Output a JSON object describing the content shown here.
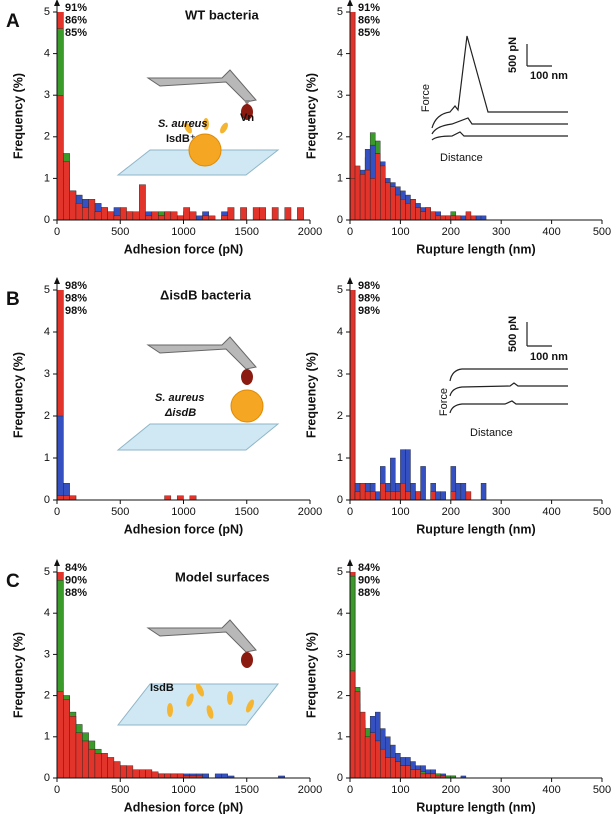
{
  "panel_labels": [
    "A",
    "B",
    "C"
  ],
  "chart_data": [
    {
      "type": "histogram",
      "title": "WT bacteria",
      "xlabel": "Adhesion force (pN)",
      "ylabel": "Frequency (%)",
      "xlim": [
        0,
        2000
      ],
      "xticks": [
        0,
        500,
        1000,
        1500,
        2000
      ],
      "ylim": [
        0,
        5
      ],
      "yticks": [
        0,
        1,
        2,
        3,
        4,
        5
      ],
      "bins": [
        0,
        50,
        100,
        150,
        200,
        250,
        300,
        350,
        400,
        450,
        500,
        550,
        600,
        650,
        700,
        750,
        800,
        850,
        900,
        950,
        1000,
        1050,
        1100,
        1150,
        1200,
        1250,
        1300,
        1350,
        1400,
        1450,
        1500,
        1550,
        1600,
        1650,
        1700,
        1750,
        1800,
        1850,
        1900,
        1950,
        2000
      ],
      "series": [
        {
          "color": "#e3342b",
          "peak": 91,
          "peak_label": "91%",
          "values": [
            3.0,
            1.4,
            0.7,
            0.4,
            0.3,
            0.5,
            0.2,
            0.3,
            0.2,
            0.1,
            0.3,
            0.2,
            0.2,
            0.85,
            0.1,
            0.2,
            0.1,
            0.2,
            0.2,
            0.1,
            0.3,
            0.2,
            0,
            0.1,
            0.1,
            0,
            0.1,
            0.3,
            0,
            0.3,
            0,
            0.3,
            0.3,
            0,
            0.3,
            0,
            0.3,
            0,
            0.3,
            0
          ]
        },
        {
          "color": "#3550c0",
          "peak": 86,
          "peak_label": "86%",
          "values": [
            1.5,
            1.0,
            0.7,
            0.6,
            0.5,
            0.4,
            0.4,
            0.3,
            0.2,
            0.3,
            0.2,
            0.2,
            0.1,
            0.1,
            0.2,
            0.1,
            0.1,
            0.2,
            0.1,
            0.1,
            0.2,
            0,
            0.1,
            0.2,
            0,
            0,
            0.2,
            0,
            0,
            0,
            0,
            0,
            0,
            0,
            0,
            0,
            0,
            0,
            0,
            0
          ]
        },
        {
          "color": "#3a9a2a",
          "peak": 85,
          "peak_label": "85%",
          "values": [
            4.6,
            1.6,
            0.6,
            0.4,
            0.3,
            0.2,
            0.2,
            0.2,
            0.1,
            0.1,
            0.1,
            0.2,
            0.1,
            0.1,
            0.1,
            0.1,
            0.2,
            0.1,
            0.1,
            0,
            0.1,
            0.1,
            0,
            0,
            0,
            0,
            0,
            0,
            0,
            0,
            0,
            0,
            0,
            0,
            0,
            0,
            0,
            0,
            0,
            0
          ]
        }
      ],
      "annotations": [
        "Vn",
        "S. aureus",
        "IsdB⁺"
      ]
    },
    {
      "type": "histogram",
      "xlabel": "Rupture length (nm)",
      "ylabel": "Frequency (%)",
      "xlim": [
        0,
        500
      ],
      "xticks": [
        0,
        100,
        200,
        300,
        400,
        500
      ],
      "ylim": [
        0,
        5
      ],
      "yticks": [
        0,
        1,
        2,
        3,
        4,
        5
      ],
      "bins": [
        0,
        10,
        20,
        30,
        40,
        50,
        60,
        70,
        80,
        90,
        100,
        110,
        120,
        130,
        140,
        150,
        160,
        170,
        180,
        190,
        200,
        210,
        220,
        230,
        240,
        250,
        260,
        270,
        280,
        290,
        300
      ],
      "series": [
        {
          "color": "#e3342b",
          "peak": 91,
          "peak_label": "91%",
          "values": [
            1.0,
            1.3,
            1.1,
            1.2,
            1.0,
            1.6,
            1.3,
            0.9,
            0.8,
            0.6,
            0.5,
            0.4,
            0.5,
            0.3,
            0.2,
            0.3,
            0.2,
            0.1,
            0.1,
            0.1,
            0.1,
            0.1,
            0,
            0.2,
            0.1,
            0,
            0,
            0,
            0,
            0
          ]
        },
        {
          "color": "#3550c0",
          "peak": 86,
          "peak_label": "86%",
          "values": [
            0.5,
            0.8,
            1.2,
            1.7,
            1.8,
            1.6,
            1.4,
            1.0,
            0.9,
            0.8,
            0.7,
            0.6,
            0.5,
            0.4,
            0.3,
            0.3,
            0.2,
            0.2,
            0.1,
            0.1,
            0.1,
            0.1,
            0.1,
            0.1,
            0,
            0.1,
            0.1,
            0,
            0,
            0
          ]
        },
        {
          "color": "#3a9a2a",
          "peak": 85,
          "peak_label": "85%",
          "values": [
            0.3,
            0.5,
            1.0,
            1.5,
            2.1,
            1.9,
            1.2,
            0.9,
            0.8,
            0.7,
            0.6,
            0.4,
            0.4,
            0.3,
            0.2,
            0.2,
            0.1,
            0.1,
            0.1,
            0.1,
            0.2,
            0,
            0,
            0,
            0,
            0,
            0,
            0,
            0,
            0
          ]
        }
      ],
      "annotations": [
        "500 pN",
        "100 nm",
        "Force",
        "Distance"
      ]
    },
    {
      "type": "histogram",
      "title": "ΔisdB bacteria",
      "xlabel": "Adhesion force (pN)",
      "ylabel": "Frequency (%)",
      "xlim": [
        0,
        2000
      ],
      "xticks": [
        0,
        500,
        1000,
        1500,
        2000
      ],
      "ylim": [
        0,
        5
      ],
      "yticks": [
        0,
        1,
        2,
        3,
        4,
        5
      ],
      "bins": [
        0,
        50,
        100,
        150,
        200,
        250,
        300,
        350,
        400,
        450,
        500,
        550,
        600,
        650,
        700,
        750,
        800,
        850,
        900,
        950,
        1000,
        1050,
        1100,
        1150,
        1200
      ],
      "series": [
        {
          "color": "#e3342b",
          "peak": 98,
          "peak_label": "98%",
          "values": [
            0.1,
            0.1,
            0.1,
            0,
            0,
            0,
            0,
            0,
            0,
            0,
            0,
            0,
            0,
            0,
            0,
            0,
            0,
            0.1,
            0,
            0.1,
            0,
            0.1,
            0,
            0
          ]
        },
        {
          "color": "#3550c0",
          "peak": 98,
          "peak_label": "98%",
          "values": [
            2.0,
            0.4,
            0.1,
            0,
            0,
            0,
            0,
            0,
            0,
            0,
            0,
            0,
            0,
            0,
            0,
            0,
            0,
            0,
            0,
            0,
            0,
            0,
            0,
            0
          ]
        },
        {
          "color": "#3a9a2a",
          "peak": 98,
          "peak_label": "98%",
          "values": [
            0,
            0,
            0,
            0,
            0,
            0,
            0,
            0,
            0,
            0,
            0,
            0,
            0,
            0,
            0,
            0,
            0,
            0,
            0,
            0,
            0,
            0,
            0,
            0
          ]
        }
      ],
      "annotations": [
        "S. aureus",
        "ΔisdB"
      ]
    },
    {
      "type": "histogram",
      "xlabel": "Rupture length (nm)",
      "ylabel": "Frequency (%)",
      "xlim": [
        0,
        500
      ],
      "xticks": [
        0,
        100,
        200,
        300,
        400,
        500
      ],
      "ylim": [
        0,
        5
      ],
      "yticks": [
        0,
        1,
        2,
        3,
        4,
        5
      ],
      "bins": [
        0,
        10,
        20,
        30,
        40,
        50,
        60,
        70,
        80,
        90,
        100,
        110,
        120,
        130,
        140,
        150,
        160,
        170,
        180,
        190,
        200,
        210,
        220,
        230,
        240,
        250,
        260,
        270,
        280,
        290,
        300
      ],
      "series": [
        {
          "color": "#e3342b",
          "peak": 98,
          "peak_label": "98%",
          "values": [
            0,
            0.2,
            0.4,
            0.2,
            0.2,
            0,
            0.4,
            0.2,
            0.2,
            0.2,
            0.4,
            0.2,
            0,
            0.2,
            0,
            0,
            0.2,
            0,
            0,
            0,
            0.2,
            0,
            0,
            0.2,
            0,
            0,
            0,
            0,
            0,
            0
          ]
        },
        {
          "color": "#3550c0",
          "peak": 98,
          "peak_label": "98%",
          "values": [
            0,
            0.4,
            0.2,
            0.4,
            0.4,
            0.2,
            0.8,
            0.4,
            1.0,
            0.4,
            1.2,
            1.2,
            0.4,
            0.2,
            0.8,
            0,
            0.4,
            0.2,
            0.2,
            0,
            0.8,
            0.4,
            0.4,
            0,
            0,
            0,
            0.4,
            0,
            0,
            0
          ]
        },
        {
          "color": "#3a9a2a",
          "peak": 98,
          "peak_label": "98%",
          "values": [
            0,
            0.2,
            0.2,
            0,
            0,
            0,
            0,
            0,
            0,
            0,
            0,
            0,
            0,
            0,
            0,
            0,
            0,
            0,
            0,
            0,
            0,
            0,
            0,
            0,
            0,
            0,
            0,
            0,
            0,
            0
          ]
        }
      ],
      "annotations": [
        "500 pN",
        "100 nm",
        "Force",
        "Distance"
      ]
    },
    {
      "type": "histogram",
      "title": "Model surfaces",
      "xlabel": "Adhesion force (pN)",
      "ylabel": "Frequency (%)",
      "xlim": [
        0,
        2000
      ],
      "xticks": [
        0,
        500,
        1000,
        1500,
        2000
      ],
      "ylim": [
        0,
        5
      ],
      "yticks": [
        0,
        1,
        2,
        3,
        4,
        5
      ],
      "bins": [
        0,
        50,
        100,
        150,
        200,
        250,
        300,
        350,
        400,
        450,
        500,
        550,
        600,
        650,
        700,
        750,
        800,
        850,
        900,
        950,
        1000,
        1050,
        1100,
        1150,
        1200,
        1250,
        1300,
        1350,
        1400,
        1450,
        1500,
        1550,
        1600,
        1650,
        1700,
        1750,
        1800
      ],
      "series": [
        {
          "color": "#e3342b",
          "peak": 84,
          "peak_label": "84%",
          "values": [
            2.1,
            1.9,
            1.5,
            1.1,
            0.9,
            0.7,
            0.6,
            0.6,
            0.5,
            0.4,
            0.3,
            0.3,
            0.2,
            0.2,
            0.2,
            0.15,
            0.1,
            0.1,
            0.1,
            0.1,
            0.05,
            0.05,
            0.05,
            0,
            0,
            0,
            0,
            0,
            0,
            0,
            0,
            0,
            0,
            0,
            0,
            0
          ]
        },
        {
          "color": "#3a9a2a",
          "peak": 90,
          "peak_label": "90%",
          "values": [
            4.8,
            2.0,
            1.6,
            1.3,
            1.1,
            0.9,
            0.7,
            0.5,
            0.4,
            0.3,
            0.25,
            0.2,
            0.15,
            0.15,
            0.1,
            0.1,
            0.1,
            0.1,
            0.05,
            0.05,
            0.05,
            0.05,
            0,
            0,
            0,
            0,
            0,
            0,
            0,
            0,
            0,
            0,
            0,
            0,
            0,
            0
          ]
        },
        {
          "color": "#3550c0",
          "peak": 88,
          "peak_label": "88%",
          "values": [
            2.3,
            2.0,
            1.4,
            1.0,
            0.8,
            0.6,
            0.5,
            0.4,
            0.3,
            0.3,
            0.3,
            0.2,
            0.2,
            0.2,
            0.2,
            0.1,
            0.1,
            0.1,
            0.1,
            0.1,
            0.1,
            0.1,
            0.1,
            0.1,
            0,
            0.1,
            0.1,
            0.05,
            0,
            0,
            0,
            0,
            0,
            0,
            0,
            0.05
          ]
        }
      ],
      "annotations": [
        "IsdB"
      ]
    },
    {
      "type": "histogram",
      "xlabel": "Rupture length (nm)",
      "ylabel": "Frequency (%)",
      "xlim": [
        0,
        500
      ],
      "xticks": [
        0,
        100,
        200,
        300,
        400,
        500
      ],
      "ylim": [
        0,
        5
      ],
      "yticks": [
        0,
        1,
        2,
        3,
        4,
        5
      ],
      "bins": [
        0,
        10,
        20,
        30,
        40,
        50,
        60,
        70,
        80,
        90,
        100,
        110,
        120,
        130,
        140,
        150,
        160,
        170,
        180,
        190,
        200,
        210,
        220,
        230,
        240,
        250,
        260,
        270,
        280,
        290,
        300
      ],
      "series": [
        {
          "color": "#e3342b",
          "peak": 84,
          "peak_label": "84%",
          "values": [
            2.6,
            2.1,
            1.6,
            1.0,
            1.1,
            0.9,
            0.7,
            0.5,
            0.5,
            0.4,
            0.3,
            0.3,
            0.2,
            0.2,
            0.1,
            0.1,
            0.1,
            0.05,
            0.05,
            0,
            0,
            0,
            0,
            0,
            0,
            0,
            0,
            0,
            0,
            0
          ]
        },
        {
          "color": "#3a9a2a",
          "peak": 90,
          "peak_label": "90%",
          "values": [
            4.9,
            2.2,
            1.3,
            1.2,
            1.0,
            0.8,
            0.6,
            0.5,
            0.4,
            0.4,
            0.3,
            0.3,
            0.2,
            0.2,
            0.15,
            0.1,
            0.1,
            0.1,
            0.05,
            0.05,
            0.05,
            0,
            0,
            0,
            0,
            0,
            0,
            0,
            0,
            0
          ]
        },
        {
          "color": "#3550c0",
          "peak": 88,
          "peak_label": "88%",
          "values": [
            2.4,
            1.8,
            1.4,
            1.2,
            1.5,
            1.6,
            1.2,
            1.0,
            0.8,
            0.6,
            0.5,
            0.5,
            0.4,
            0.3,
            0.3,
            0.2,
            0.2,
            0.1,
            0.1,
            0.05,
            0.05,
            0,
            0.05,
            0,
            0,
            0,
            0,
            0,
            0,
            0
          ]
        }
      ]
    }
  ]
}
